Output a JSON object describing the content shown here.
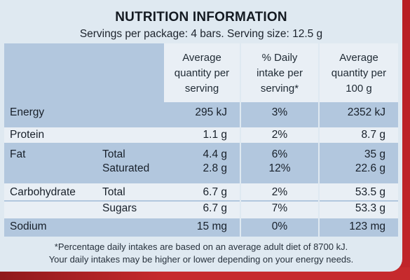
{
  "title": "NUTRITION INFORMATION",
  "subtitle": "Servings per package: 4 bars. Serving size: 12.5 g",
  "headers": {
    "per_serving": "Average\nquantity per\nserving",
    "daily_intake": "% Daily\nintake per\nserving*",
    "per_100g": "Average\nquantity per\n100 g"
  },
  "rows": {
    "energy": {
      "label": "Energy",
      "per_serving": "295 kJ",
      "daily": "3%",
      "per_100g": "2352 kJ"
    },
    "protein": {
      "label": "Protein",
      "per_serving": "1.1 g",
      "daily": "2%",
      "per_100g": "8.7 g"
    },
    "fat_total": {
      "label": "Fat",
      "sublabel": "Total",
      "per_serving": "4.4 g",
      "daily": "6%",
      "per_100g": "35 g"
    },
    "fat_saturated": {
      "sublabel": "Saturated",
      "per_serving": "2.8 g",
      "daily": "12%",
      "per_100g": "22.6 g"
    },
    "carb_total": {
      "label": "Carbohydrate",
      "sublabel": "Total",
      "per_serving": "6.7 g",
      "daily": "2%",
      "per_100g": "53.5 g"
    },
    "carb_sugars": {
      "sublabel": "Sugars",
      "per_serving": "6.7 g",
      "daily": "7%",
      "per_100g": "53.3 g"
    },
    "sodium": {
      "label": "Sodium",
      "per_serving": "15 mg",
      "daily": "0%",
      "per_100g": "123 mg"
    }
  },
  "footnote": {
    "line1": "*Percentage daily intakes are based on an average adult diet of 8700 kJ.",
    "line2": "Your daily intakes may be higher or lower depending on your energy needs."
  },
  "colors": {
    "label_bg": "#dfe9f1",
    "table_blue": "#b2c7de",
    "table_white": "#e9eff5",
    "packaging_red": "#c0252a"
  }
}
